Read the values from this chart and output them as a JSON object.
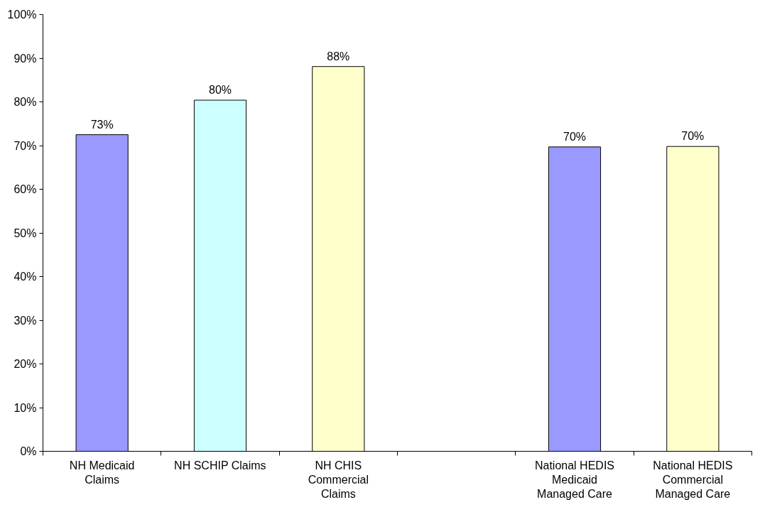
{
  "chart_data": {
    "type": "bar",
    "categories": [
      "NH Medicaid Claims",
      "NH SCHIP Claims",
      "NH CHIS Commercial Claims",
      null,
      "National HEDIS Medicaid Managed Care",
      "National HEDIS Commercial Managed Care"
    ],
    "values": [
      72.5,
      80.4,
      88.1,
      null,
      69.7,
      69.8
    ],
    "colors": [
      "#9999ff",
      "#ccffff",
      "#ffffcc",
      null,
      "#9999ff",
      "#ffffcc"
    ],
    "value_labels": [
      "73%",
      "80%",
      "88%",
      null,
      "70%",
      "70%"
    ],
    "ylim": [
      0,
      100
    ],
    "yticks": [
      {
        "value": 0,
        "label": "0%"
      },
      {
        "value": 10,
        "label": "10%"
      },
      {
        "value": 20,
        "label": "20%"
      },
      {
        "value": 30,
        "label": "30%"
      },
      {
        "value": 40,
        "label": "40%"
      },
      {
        "value": 50,
        "label": "50%"
      },
      {
        "value": 60,
        "label": "60%"
      },
      {
        "value": 70,
        "label": "70%"
      },
      {
        "value": 80,
        "label": "80%"
      },
      {
        "value": 90,
        "label": "90%"
      },
      {
        "value": 100,
        "label": "100%"
      }
    ],
    "grid": false
  }
}
